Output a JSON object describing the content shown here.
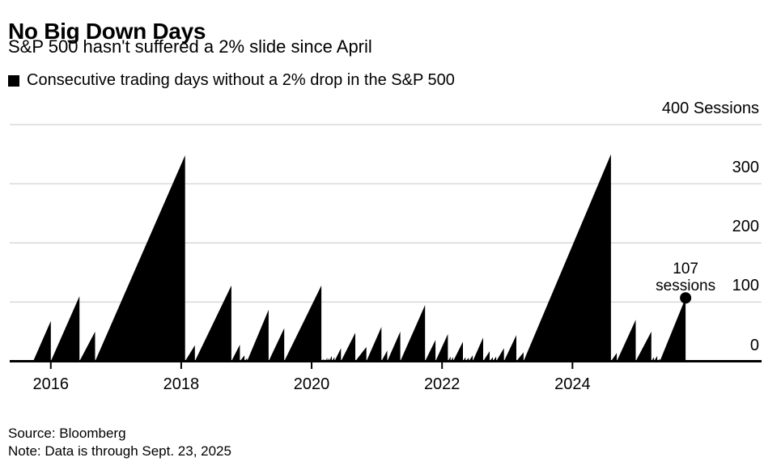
{
  "header": {
    "title": "No Big Down Days",
    "subtitle": "S&P 500 hasn't suffered a 2% slide since April"
  },
  "legend": {
    "label": "Consecutive trading days without a 2% drop in the S&P 500",
    "marker_color": "#000000"
  },
  "annotation": {
    "line1": "107",
    "line2": "sessions"
  },
  "footer": {
    "source": "Source: Bloomberg",
    "note": "Note: Data is through Sept. 23, 2025"
  },
  "chart_data": {
    "type": "area",
    "title": "No Big Down Days",
    "subtitle": "S&P 500 hasn't suffered a 2% slide since April",
    "series_name": "Consecutive trading days without a 2% drop in the S&P 500",
    "unit": "Sessions",
    "xlim": [
      2015.37,
      2026.9
    ],
    "ylim": [
      0,
      400
    ],
    "x_ticks": [
      {
        "value": 2016,
        "label": "2016"
      },
      {
        "value": 2018,
        "label": "2018"
      },
      {
        "value": 2020,
        "label": "2020"
      },
      {
        "value": 2022,
        "label": "2022"
      },
      {
        "value": 2024,
        "label": "2024"
      }
    ],
    "y_ticks": [
      {
        "value": 0,
        "label": "0"
      },
      {
        "value": 100,
        "label": "100"
      },
      {
        "value": 200,
        "label": "200"
      },
      {
        "value": 300,
        "label": "300"
      },
      {
        "value": 400,
        "label": "400 Sessions"
      }
    ],
    "grid": "horizontal",
    "legend_position": "top-left",
    "colors": {
      "area": "#000000",
      "gridline": "#d9d9d9",
      "axis": "#000000",
      "text": "#000000"
    },
    "streaks_format": "[decimal_year_when_streak_ended_with_2pct_drop, peak_consecutive_sessions]",
    "streaks": [
      [
        2016.0,
        68
      ],
      [
        2016.44,
        110
      ],
      [
        2016.68,
        50
      ],
      [
        2018.06,
        348
      ],
      [
        2018.21,
        27
      ],
      [
        2018.77,
        128
      ],
      [
        2018.9,
        28
      ],
      [
        2018.97,
        10
      ],
      [
        2019.01,
        5
      ],
      [
        2019.34,
        87
      ],
      [
        2019.58,
        56
      ],
      [
        2020.15,
        128
      ],
      [
        2020.18,
        4
      ],
      [
        2020.21,
        3
      ],
      [
        2020.24,
        6
      ],
      [
        2020.27,
        5
      ],
      [
        2020.31,
        9
      ],
      [
        2020.35,
        7
      ],
      [
        2020.45,
        22
      ],
      [
        2020.67,
        48
      ],
      [
        2020.84,
        24
      ],
      [
        2021.07,
        58
      ],
      [
        2021.16,
        18
      ],
      [
        2021.36,
        50
      ],
      [
        2021.74,
        95
      ],
      [
        2021.9,
        36
      ],
      [
        2022.09,
        46
      ],
      [
        2022.13,
        8
      ],
      [
        2022.17,
        7
      ],
      [
        2022.32,
        33
      ],
      [
        2022.36,
        7
      ],
      [
        2022.41,
        6
      ],
      [
        2022.47,
        10
      ],
      [
        2022.63,
        40
      ],
      [
        2022.73,
        17
      ],
      [
        2022.78,
        7
      ],
      [
        2022.83,
        8
      ],
      [
        2022.95,
        22
      ],
      [
        2023.14,
        44
      ],
      [
        2023.25,
        15
      ],
      [
        2024.59,
        350
      ],
      [
        2024.68,
        14
      ],
      [
        2024.97,
        70
      ],
      [
        2025.21,
        50
      ],
      [
        2025.25,
        7
      ],
      [
        2025.3,
        9
      ],
      [
        2025.34,
        4
      ]
    ],
    "final_point": {
      "x": 2025.735,
      "value": 107,
      "label": "107 sessions"
    }
  }
}
